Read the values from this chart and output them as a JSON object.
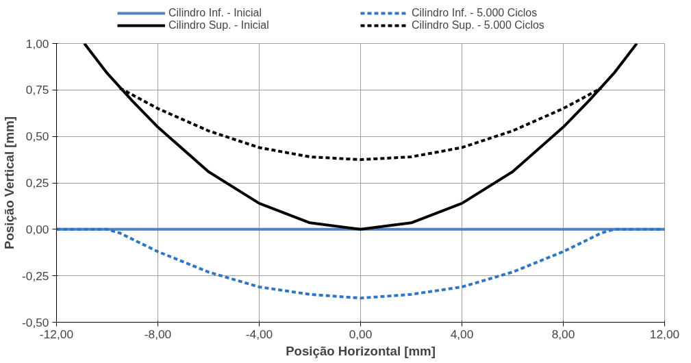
{
  "chart_data": {
    "type": "line",
    "xlabel": "Posição Horizontal [mm]",
    "ylabel": "Posição Vertical [mm]",
    "xlim": [
      -12,
      12
    ],
    "ylim": [
      -0.5,
      1.0
    ],
    "xticks": [
      {
        "value": -12,
        "label": "-12,00"
      },
      {
        "value": -8,
        "label": "-8,00"
      },
      {
        "value": -4,
        "label": "-4,00"
      },
      {
        "value": 0,
        "label": "0,00"
      },
      {
        "value": 4,
        "label": "4,00"
      },
      {
        "value": 8,
        "label": "8,00"
      },
      {
        "value": 12,
        "label": "12,00"
      }
    ],
    "yticks": [
      {
        "value": -0.5,
        "label": "-0,50"
      },
      {
        "value": -0.25,
        "label": "-0,25"
      },
      {
        "value": 0,
        "label": "0,00"
      },
      {
        "value": 0.25,
        "label": "0,25"
      },
      {
        "value": 0.5,
        "label": "0,50"
      },
      {
        "value": 0.75,
        "label": "0,75"
      },
      {
        "value": 1.0,
        "label": "1,00"
      }
    ],
    "grid": true,
    "legend": "top",
    "series": [
      {
        "name": "Cilindro Inf. - Inicial",
        "color": "#4f81bd",
        "line_style": "solid",
        "x": [
          -12,
          12
        ],
        "values": [
          0,
          0
        ]
      },
      {
        "name": "Cilindro Inf. - 5.000 Ciclos",
        "color": "#2e75c6",
        "line_style": "dashed",
        "x": [
          -12,
          -10,
          -9.5,
          -8,
          -6,
          -4,
          -2,
          0,
          2,
          4,
          6,
          8,
          9.5,
          10,
          12
        ],
        "values": [
          0,
          0,
          -0.02,
          -0.12,
          -0.23,
          -0.31,
          -0.35,
          -0.37,
          -0.35,
          -0.31,
          -0.23,
          -0.12,
          -0.02,
          0,
          0
        ]
      },
      {
        "name": "Cilindro Sup. - Inicial",
        "color": "#000000",
        "line_style": "solid",
        "x": [
          -10.9,
          -10,
          -9,
          -8,
          -6,
          -4,
          -2,
          0,
          2,
          4,
          6,
          8,
          9,
          10,
          10.9
        ],
        "values": [
          1.0,
          0.84,
          0.69,
          0.55,
          0.31,
          0.14,
          0.035,
          0,
          0.035,
          0.14,
          0.31,
          0.55,
          0.69,
          0.84,
          1.0
        ]
      },
      {
        "name": "Cilindro Sup. - 5.000 Ciclos",
        "color": "#000000",
        "line_style": "dashed",
        "x": [
          -9.5,
          -8,
          -6,
          -4,
          -2,
          0,
          2,
          4,
          6,
          8,
          9.5
        ],
        "values": [
          0.76,
          0.65,
          0.53,
          0.44,
          0.39,
          0.375,
          0.39,
          0.44,
          0.53,
          0.65,
          0.76
        ]
      }
    ]
  }
}
